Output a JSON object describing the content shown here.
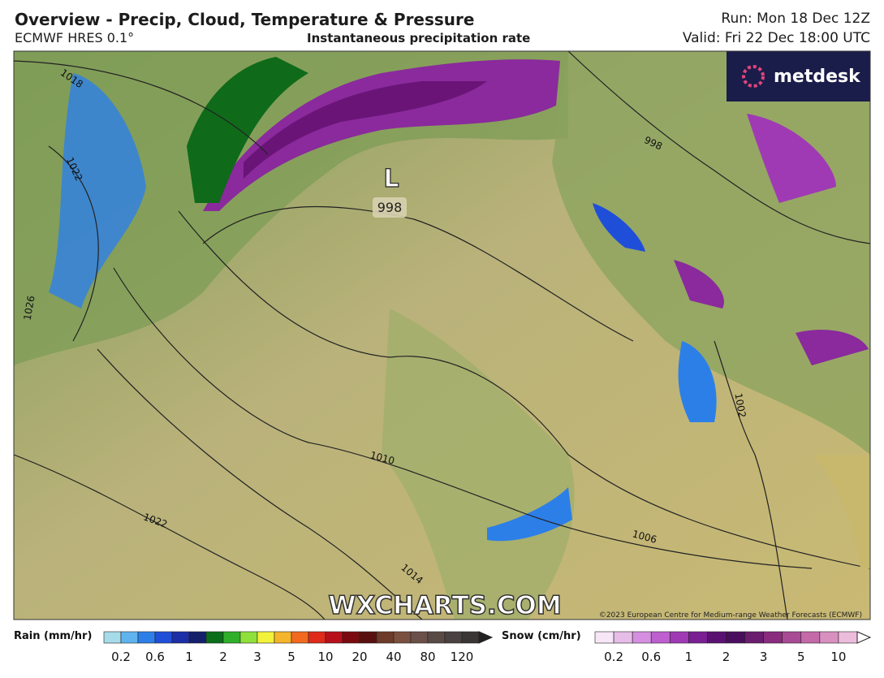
{
  "header": {
    "title": "Overview - Precip, Cloud, Temperature & Pressure",
    "model": "ECMWF HRES 0.1°",
    "field": "Instantaneous precipitation rate",
    "run": "Run: Mon 18 Dec 12Z",
    "valid": "Valid: Fri 22 Dec 18:00 UTC"
  },
  "logo": "metdesk",
  "map": {
    "low_symbol": "L",
    "low_value": "998",
    "isobar_labels": [
      "1018",
      "1022",
      "1026",
      "1010",
      "1022",
      "1014",
      "1006",
      "1002",
      "998"
    ],
    "watermark": "WXCHARTS.COM",
    "copyright": "©2023 European Centre for Medium-range Weather Forecasts (ECMWF)"
  },
  "legend": {
    "rain": {
      "title": "Rain (mm/hr)",
      "labels": [
        "0.2",
        "0.6",
        "1",
        "2",
        "3",
        "5",
        "10",
        "20",
        "40",
        "80",
        "120"
      ],
      "colors": [
        "#a6dcea",
        "#5fb4ef",
        "#2d7fe8",
        "#1f4fd9",
        "#1c2fa8",
        "#15206b",
        "#0b6e1a",
        "#2faf2a",
        "#8fe03a",
        "#f2f23a",
        "#f5b52a",
        "#f26a1f",
        "#e02a1a",
        "#b8101a",
        "#7a0a10",
        "#5a0f0f",
        "#6e3a2a",
        "#7a5040",
        "#6a5048",
        "#5a4a46",
        "#4a4240",
        "#3a3636"
      ]
    },
    "snow": {
      "title": "Snow (cm/hr)",
      "labels": [
        "0.2",
        "0.6",
        "1",
        "2",
        "3",
        "5",
        "10"
      ],
      "colors": [
        "#f6e6f6",
        "#e6bde8",
        "#d58ee0",
        "#bd5fce",
        "#9f3ab4",
        "#7a1f93",
        "#5a1272",
        "#4a0d5e",
        "#6a1c6e",
        "#8a2c7e",
        "#a84a94",
        "#c46aa8",
        "#d890c0",
        "#ecbcdc"
      ]
    }
  }
}
